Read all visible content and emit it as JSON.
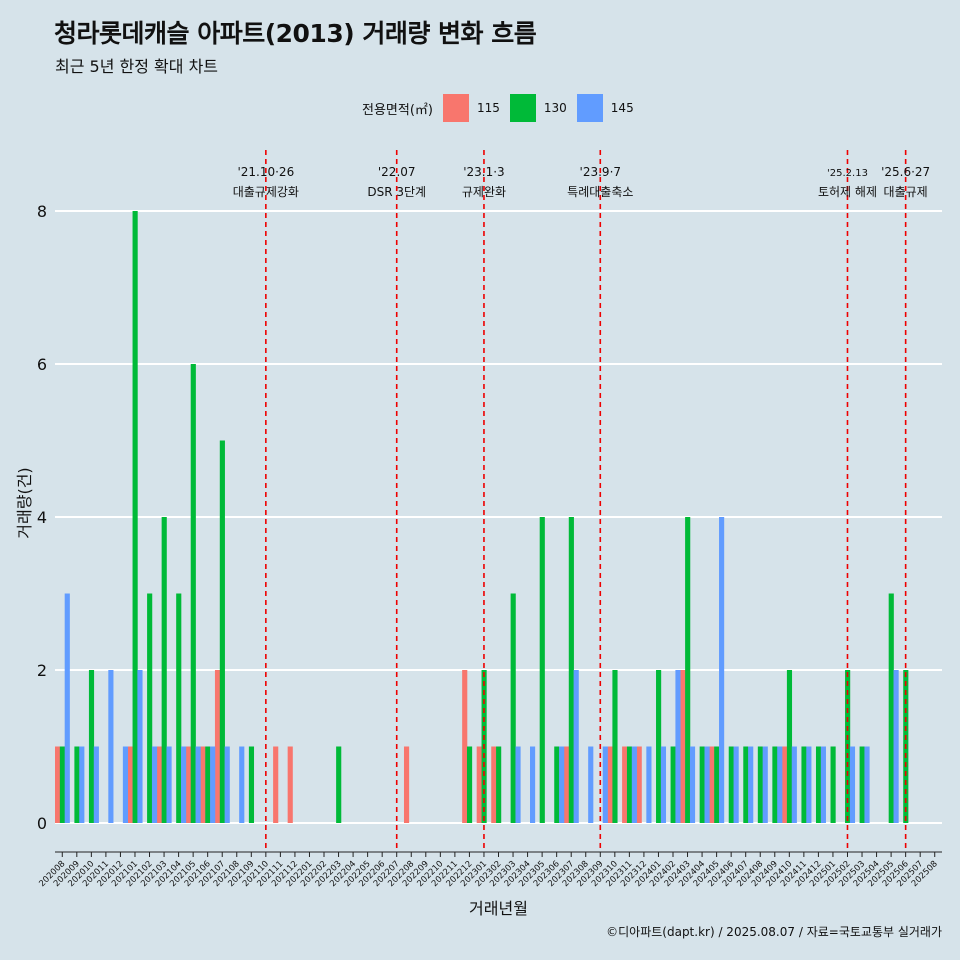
{
  "title": "청라롯데캐슬 아파트(2013) 거래량 변화 흐름",
  "subtitle": "최근 5년 한정 확대 차트",
  "caption": "©디아파트(dapt.kr) / 2025.08.07 / 자료=국토교통부 실거래가",
  "legend": {
    "title": "전용면적(㎡)",
    "items": [
      {
        "label": "115",
        "color": "#f8766d"
      },
      {
        "label": "130",
        "color": "#00ba38"
      },
      {
        "label": "145",
        "color": "#619cff"
      }
    ]
  },
  "chart_data": {
    "type": "bar",
    "title": "청라롯데캐슬 아파트(2013) 거래량 변화 흐름",
    "subtitle": "최근 5년 한정 확대 차트",
    "xlabel": "거래년월",
    "ylabel": "거래량(건)",
    "ylim": [
      0,
      8
    ],
    "yticks": [
      0,
      2,
      4,
      6,
      8
    ],
    "grid": true,
    "legend_position": "top",
    "categories": [
      "202008",
      "202009",
      "202010",
      "202011",
      "202012",
      "202101",
      "202102",
      "202103",
      "202104",
      "202105",
      "202106",
      "202107",
      "202108",
      "202109",
      "202110",
      "202111",
      "202112",
      "202201",
      "202202",
      "202203",
      "202204",
      "202205",
      "202206",
      "202207",
      "202208",
      "202209",
      "202210",
      "202211",
      "202212",
      "202301",
      "202302",
      "202303",
      "202304",
      "202305",
      "202306",
      "202307",
      "202308",
      "202309",
      "202310",
      "202311",
      "202312",
      "202401",
      "202402",
      "202403",
      "202404",
      "202405",
      "202406",
      "202407",
      "202408",
      "202409",
      "202410",
      "202411",
      "202412",
      "202501",
      "202502",
      "202503",
      "202504",
      "202505",
      "202506",
      "202507",
      "202508"
    ],
    "series": [
      {
        "name": "115",
        "color": "#f8766d",
        "values": [
          1,
          0,
          0,
          0,
          0,
          1,
          0,
          1,
          0,
          1,
          1,
          2,
          0,
          0,
          0,
          1,
          1,
          0,
          0,
          0,
          0,
          0,
          0,
          0,
          1,
          0,
          0,
          0,
          2,
          1,
          1,
          0,
          0,
          0,
          0,
          1,
          0,
          0,
          1,
          1,
          1,
          0,
          0,
          2,
          0,
          1,
          0,
          0,
          0,
          0,
          1,
          0,
          0,
          0,
          0,
          0,
          0,
          0,
          0,
          0,
          0
        ]
      },
      {
        "name": "130",
        "color": "#00ba38",
        "values": [
          1,
          1,
          2,
          0,
          0,
          8,
          3,
          4,
          3,
          6,
          1,
          5,
          0,
          1,
          0,
          0,
          0,
          0,
          0,
          1,
          0,
          0,
          0,
          0,
          0,
          0,
          0,
          0,
          1,
          2,
          1,
          3,
          0,
          4,
          1,
          4,
          0,
          0,
          2,
          1,
          0,
          2,
          1,
          4,
          1,
          1,
          1,
          1,
          1,
          1,
          2,
          1,
          1,
          1,
          2,
          1,
          0,
          3,
          2,
          0,
          0
        ]
      },
      {
        "name": "145",
        "color": "#619cff",
        "values": [
          3,
          1,
          1,
          2,
          1,
          2,
          1,
          1,
          1,
          1,
          1,
          1,
          1,
          0,
          0,
          0,
          0,
          0,
          0,
          0,
          0,
          0,
          0,
          0,
          0,
          0,
          0,
          0,
          0,
          0,
          0,
          1,
          1,
          0,
          1,
          2,
          1,
          1,
          0,
          1,
          1,
          1,
          2,
          1,
          1,
          4,
          1,
          1,
          1,
          1,
          1,
          1,
          1,
          0,
          1,
          1,
          0,
          2,
          0,
          0,
          0
        ]
      }
    ],
    "events": [
      {
        "line1": "'21.10·26",
        "line2": "대출규제강화",
        "x": "202110"
      },
      {
        "line1": "'22.07",
        "line2": "DSR 3단계",
        "x": "202207"
      },
      {
        "line1": "'23.1·3",
        "line2": "규제완화",
        "x": "202301"
      },
      {
        "line1": "'23.9·7",
        "line2": "특례대출축소",
        "x": "202309"
      },
      {
        "line1": "'25.2.13",
        "line2": "토허제 해제",
        "x": "202502"
      },
      {
        "line1": "'25.6·27",
        "line2": "대출규제",
        "x": "202506"
      }
    ]
  }
}
